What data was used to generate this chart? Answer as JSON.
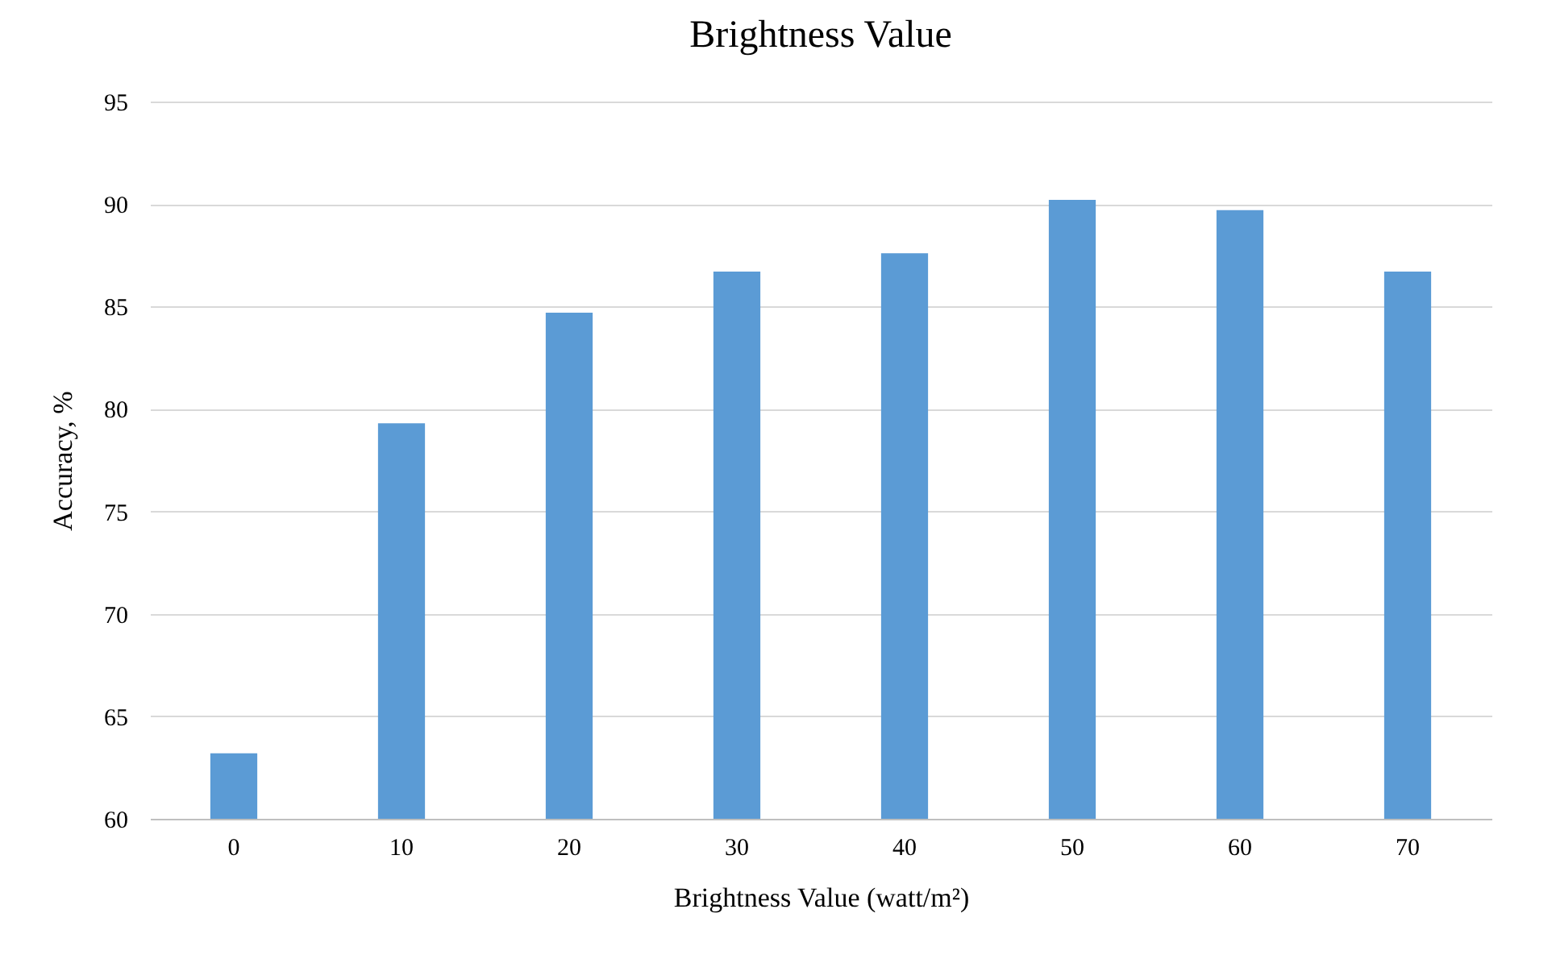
{
  "chart_data": {
    "type": "bar",
    "title": "Brightness Value",
    "xlabel": "Brightness Value (watt/m²)",
    "ylabel": "Accuracy, %",
    "categories": [
      "0",
      "10",
      "20",
      "30",
      "40",
      "50",
      "60",
      "70"
    ],
    "values": [
      63.2,
      79.3,
      84.7,
      86.7,
      87.6,
      90.2,
      89.7,
      86.7
    ],
    "color": "#5b9bd5",
    "ylim": [
      60,
      95
    ],
    "yticks": [
      60,
      65,
      70,
      75,
      80,
      85,
      90,
      95
    ],
    "grid": "y",
    "legend": false
  }
}
